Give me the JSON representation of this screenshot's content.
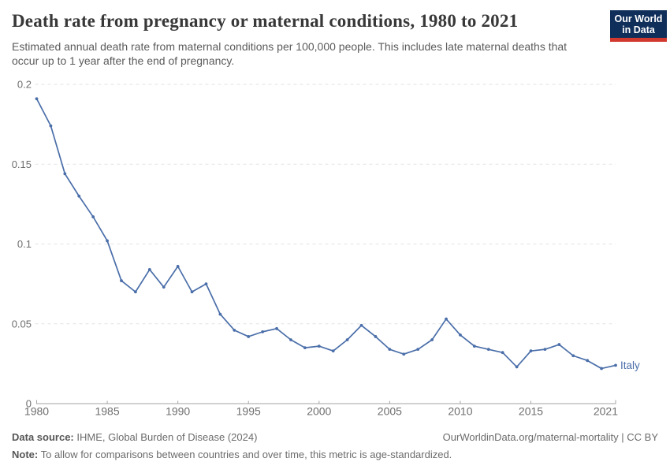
{
  "header": {
    "title": "Death rate from pregnancy or maternal conditions, 1980 to 2021",
    "subtitle": "Estimated annual death rate from maternal conditions per 100,000 people. This includes late maternal deaths that occur up to 1 year after the end of pregnancy.",
    "logo": {
      "line1": "Our World",
      "line2": "in Data"
    }
  },
  "chart_data": {
    "type": "line",
    "title": "Death rate from pregnancy or maternal conditions, 1980 to 2021",
    "xlabel": "",
    "ylabel": "",
    "xlim": [
      1980,
      2021
    ],
    "ylim": [
      0,
      0.2
    ],
    "grid": "dashed-horizontal",
    "legend_position": "end-of-line-label",
    "x": [
      1980,
      1981,
      1982,
      1983,
      1984,
      1985,
      1986,
      1987,
      1988,
      1989,
      1990,
      1991,
      1992,
      1993,
      1994,
      1995,
      1996,
      1997,
      1998,
      1999,
      2000,
      2001,
      2002,
      2003,
      2004,
      2005,
      2006,
      2007,
      2008,
      2009,
      2010,
      2011,
      2012,
      2013,
      2014,
      2015,
      2016,
      2017,
      2018,
      2019,
      2020,
      2021
    ],
    "series": [
      {
        "name": "Italy",
        "color": "#4a6ea9",
        "values": [
          0.191,
          0.174,
          0.144,
          0.13,
          0.117,
          0.102,
          0.077,
          0.07,
          0.084,
          0.073,
          0.086,
          0.07,
          0.075,
          0.056,
          0.046,
          0.042,
          0.045,
          0.047,
          0.04,
          0.035,
          0.036,
          0.033,
          0.04,
          0.049,
          0.042,
          0.034,
          0.031,
          0.034,
          0.04,
          0.053,
          0.043,
          0.036,
          0.034,
          0.032,
          0.023,
          0.033,
          0.034,
          0.037,
          0.03,
          0.027,
          0.022,
          0.024
        ]
      }
    ],
    "x_ticks": [
      1980,
      1985,
      1990,
      1995,
      2000,
      2005,
      2010,
      2015,
      2021
    ],
    "y_ticks": {
      "values": [
        0,
        0.05,
        0.1,
        0.15,
        0.2
      ],
      "labels": [
        "0",
        "0.05",
        "0.1",
        "0.15",
        "0.2"
      ]
    }
  },
  "colors": {
    "line": "#4a6ea9",
    "grid": "#e2e2e2",
    "axis": "#a3a3a3",
    "tick_text": "#6e6e6e",
    "logo_bg": "#0f2e5a",
    "logo_accent": "#d1392f"
  },
  "footer": {
    "data_source_label": "Data source:",
    "data_source_value": "IHME, Global Burden of Disease (2024)",
    "note_label": "Note:",
    "note_value": "To allow for comparisons between countries and over time, this metric is age-standardized.",
    "citation": "OurWorldinData.org/maternal-mortality | CC BY"
  }
}
